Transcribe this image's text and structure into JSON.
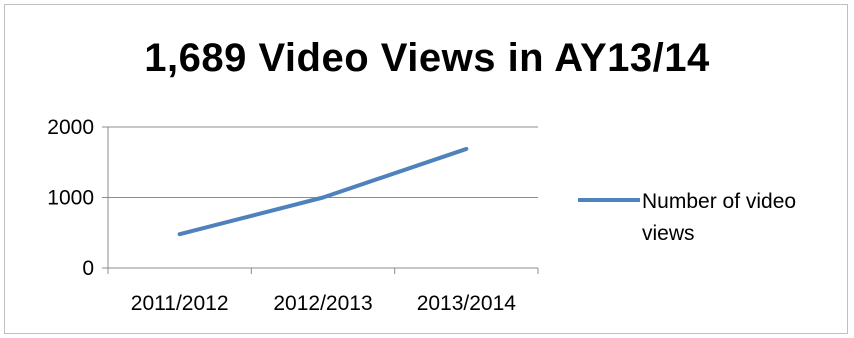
{
  "chart_data": {
    "type": "line",
    "title": "1,689 Video Views in AY13/14",
    "categories": [
      "2011/2012",
      "2012/2013",
      "2013/2014"
    ],
    "series": [
      {
        "name": "Number of video views",
        "values": [
          480,
          1000,
          1689
        ],
        "color": "#4f81bd"
      }
    ],
    "ylim": [
      0,
      2000
    ],
    "yticks": [
      0,
      1000,
      2000
    ],
    "grid": true,
    "legend_position": "right"
  }
}
